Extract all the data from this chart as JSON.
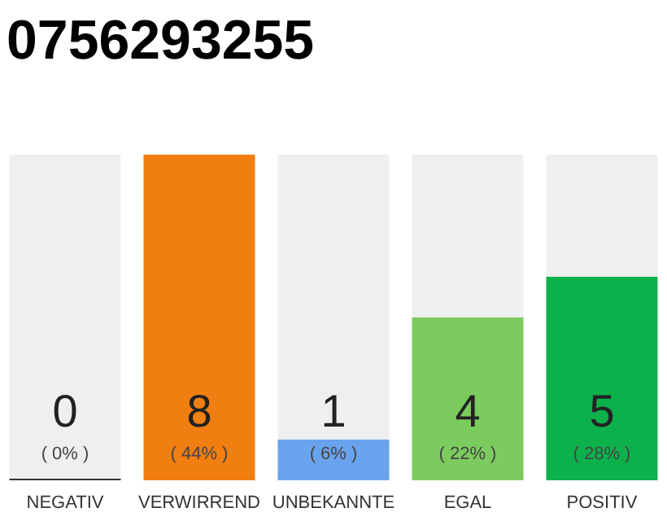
{
  "chart_data": {
    "type": "bar",
    "title": "0756293255",
    "categories": [
      "NEGATIV",
      "VERWIRREND",
      "UNBEKANNTE",
      "EGAL",
      "POSITIV"
    ],
    "values": [
      0,
      8,
      1,
      4,
      5
    ],
    "data_labels": true,
    "ylim": [
      0,
      8
    ],
    "tick_labels": "x",
    "annotations": [
      "( 0% )",
      "( 44% )",
      "( 6% )",
      "( 22% )",
      "( 28% )"
    ],
    "colors": [
      "#333333",
      "#f07e10",
      "#6aa3ed",
      "#7ccb5f",
      "#0db14b"
    ]
  }
}
